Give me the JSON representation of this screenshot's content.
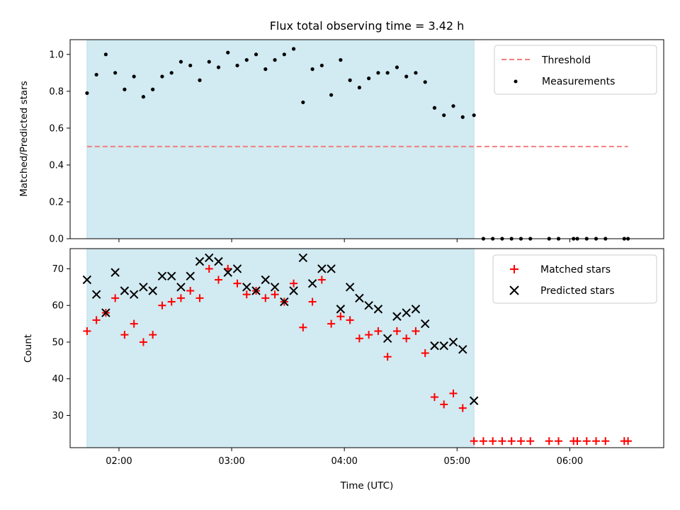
{
  "title": "Flux total observing time = 3.42 h",
  "chart_data": [
    {
      "type": "scatter",
      "panel": "top",
      "ylabel": "Matched/Predicted stars",
      "xlabel": "",
      "ylim": [
        0.0,
        1.08
      ],
      "yticks": [
        0.0,
        0.2,
        0.4,
        0.6,
        0.8,
        1.0
      ],
      "ytick_labels": [
        "0.0",
        "0.2",
        "0.4",
        "0.6",
        "0.8",
        "1.0"
      ],
      "xlim": [
        "01:34",
        "06:50"
      ],
      "xticks": [
        "02:00",
        "03:00",
        "04:00",
        "05:00",
        "06:00"
      ],
      "shaded_span": [
        "01:43",
        "05:09"
      ],
      "grid": false,
      "legend_position": "upper right",
      "series": [
        {
          "name": "Threshold",
          "style": "dashed-line",
          "color": "#f08080",
          "x": [
            "01:43",
            "06:31"
          ],
          "y": [
            0.5,
            0.5
          ]
        },
        {
          "name": "Measurements",
          "style": "dot",
          "color": "#000000",
          "x": [
            "01:43",
            "01:48",
            "01:53",
            "01:58",
            "02:03",
            "02:08",
            "02:13",
            "02:18",
            "02:23",
            "02:28",
            "02:33",
            "02:38",
            "02:43",
            "02:48",
            "02:53",
            "02:58",
            "03:03",
            "03:08",
            "03:13",
            "03:18",
            "03:23",
            "03:28",
            "03:33",
            "03:38",
            "03:43",
            "03:48",
            "03:53",
            "03:58",
            "04:03",
            "04:08",
            "04:13",
            "04:18",
            "04:23",
            "04:28",
            "04:33",
            "04:38",
            "04:43",
            "04:48",
            "04:53",
            "04:58",
            "05:03",
            "05:09",
            "05:14",
            "05:19",
            "05:24",
            "05:29",
            "05:34",
            "05:39",
            "05:49",
            "05:54",
            "06:02",
            "06:04",
            "06:09",
            "06:14",
            "06:19",
            "06:29",
            "06:31"
          ],
          "y": [
            0.79,
            0.89,
            1.0,
            0.9,
            0.81,
            0.88,
            0.77,
            0.81,
            0.88,
            0.9,
            0.96,
            0.94,
            0.86,
            0.96,
            0.93,
            1.01,
            0.94,
            0.97,
            1.0,
            0.92,
            0.97,
            1.0,
            1.03,
            0.74,
            0.92,
            0.94,
            0.78,
            0.97,
            0.86,
            0.82,
            0.87,
            0.9,
            0.9,
            0.93,
            0.88,
            0.9,
            0.85,
            0.71,
            0.67,
            0.72,
            0.66,
            0.67,
            0.0,
            0.0,
            0.0,
            0.0,
            0.0,
            0.0,
            0.0,
            0.0,
            0.0,
            0.0,
            0.0,
            0.0,
            0.0,
            0.0,
            0.0
          ]
        }
      ]
    },
    {
      "type": "scatter",
      "panel": "bottom",
      "ylabel": "Count",
      "xlabel": "Time (UTC)",
      "ylim": [
        21.2,
        75.5
      ],
      "yticks": [
        30,
        40,
        50,
        60,
        70
      ],
      "ytick_labels": [
        "30",
        "40",
        "50",
        "60",
        "70"
      ],
      "xlim": [
        "01:34",
        "06:50"
      ],
      "xticks": [
        "02:00",
        "03:00",
        "04:00",
        "05:00",
        "06:00"
      ],
      "xtick_labels": [
        "02:00",
        "03:00",
        "04:00",
        "05:00",
        "06:00"
      ],
      "shaded_span": [
        "01:43",
        "05:09"
      ],
      "grid": false,
      "legend_position": "upper right",
      "series": [
        {
          "name": "Matched stars",
          "style": "plus",
          "color": "#ff0000",
          "x": [
            "01:43",
            "01:48",
            "01:53",
            "01:58",
            "02:03",
            "02:08",
            "02:13",
            "02:18",
            "02:23",
            "02:28",
            "02:33",
            "02:38",
            "02:43",
            "02:48",
            "02:53",
            "02:58",
            "03:03",
            "03:08",
            "03:13",
            "03:18",
            "03:23",
            "03:28",
            "03:33",
            "03:38",
            "03:43",
            "03:48",
            "03:53",
            "03:58",
            "04:03",
            "04:08",
            "04:13",
            "04:18",
            "04:23",
            "04:28",
            "04:33",
            "04:38",
            "04:43",
            "04:48",
            "04:53",
            "04:58",
            "05:03",
            "05:09",
            "05:14",
            "05:19",
            "05:24",
            "05:29",
            "05:34",
            "05:39",
            "05:49",
            "05:54",
            "06:02",
            "06:04",
            "06:09",
            "06:14",
            "06:19",
            "06:29",
            "06:31"
          ],
          "y": [
            53,
            56,
            58,
            62,
            52,
            55,
            50,
            52,
            60,
            61,
            62,
            64,
            62,
            70,
            67,
            70,
            66,
            63,
            64,
            62,
            63,
            61,
            66,
            54,
            61,
            67,
            55,
            57,
            56,
            51,
            52,
            53,
            46,
            53,
            51,
            53,
            47,
            35,
            33,
            36,
            32,
            23,
            23,
            23,
            23,
            23,
            23,
            23,
            23,
            23,
            23,
            23,
            23,
            23,
            23,
            23,
            23
          ]
        },
        {
          "name": "Predicted stars",
          "style": "x",
          "color": "#000000",
          "x": [
            "01:43",
            "01:48",
            "01:53",
            "01:58",
            "02:03",
            "02:08",
            "02:13",
            "02:18",
            "02:23",
            "02:28",
            "02:33",
            "02:38",
            "02:43",
            "02:48",
            "02:53",
            "02:58",
            "03:03",
            "03:08",
            "03:13",
            "03:18",
            "03:23",
            "03:28",
            "03:33",
            "03:38",
            "03:43",
            "03:48",
            "03:53",
            "03:58",
            "04:03",
            "04:08",
            "04:13",
            "04:18",
            "04:23",
            "04:28",
            "04:33",
            "04:38",
            "04:43",
            "04:48",
            "04:53",
            "04:58",
            "05:03",
            "05:09"
          ],
          "y": [
            67,
            63,
            58,
            69,
            64,
            63,
            65,
            64,
            68,
            68,
            65,
            68,
            72,
            73,
            72,
            69,
            70,
            65,
            64,
            67,
            65,
            61,
            64,
            73,
            66,
            70,
            70,
            59,
            65,
            62,
            60,
            59,
            51,
            57,
            58,
            59,
            55,
            49,
            49,
            50,
            48,
            34
          ]
        }
      ]
    }
  ]
}
